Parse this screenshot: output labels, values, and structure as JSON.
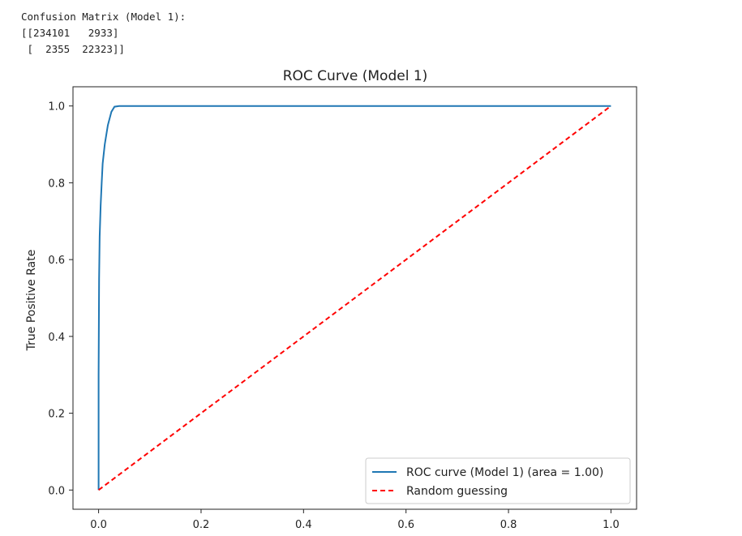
{
  "console": {
    "lines": [
      "Confusion Matrix (Model 1):",
      "[[234101   2933]",
      " [  2355  22323]]"
    ]
  },
  "chart_data": {
    "type": "line",
    "title": "ROC Curve (Model 1)",
    "xlabel": "",
    "ylabel": "True Positive Rate",
    "xlim": [
      -0.05,
      1.05
    ],
    "ylim": [
      -0.05,
      1.05
    ],
    "x_ticks": [
      "0.0",
      "0.2",
      "0.4",
      "0.6",
      "0.8",
      "1.0"
    ],
    "y_ticks": [
      "0.0",
      "0.2",
      "0.4",
      "0.6",
      "0.8",
      "1.0"
    ],
    "grid": false,
    "legend_position": "lower right",
    "series": [
      {
        "name": "ROC curve (Model 1) (area = 1.00)",
        "color": "#1f77b4",
        "style": "solid",
        "x": [
          0.0,
          0.0,
          0.001,
          0.002,
          0.004,
          0.006,
          0.008,
          0.012,
          0.018,
          0.025,
          0.031,
          0.04,
          0.2,
          0.5,
          1.0
        ],
        "y": [
          0.0,
          0.3,
          0.55,
          0.66,
          0.74,
          0.8,
          0.85,
          0.9,
          0.95,
          0.985,
          0.998,
          1.0,
          1.0,
          1.0,
          1.0
        ]
      },
      {
        "name": "Random guessing",
        "color": "#ff0000",
        "style": "dashed",
        "x": [
          0.0,
          1.0
        ],
        "y": [
          0.0,
          1.0
        ]
      }
    ]
  }
}
